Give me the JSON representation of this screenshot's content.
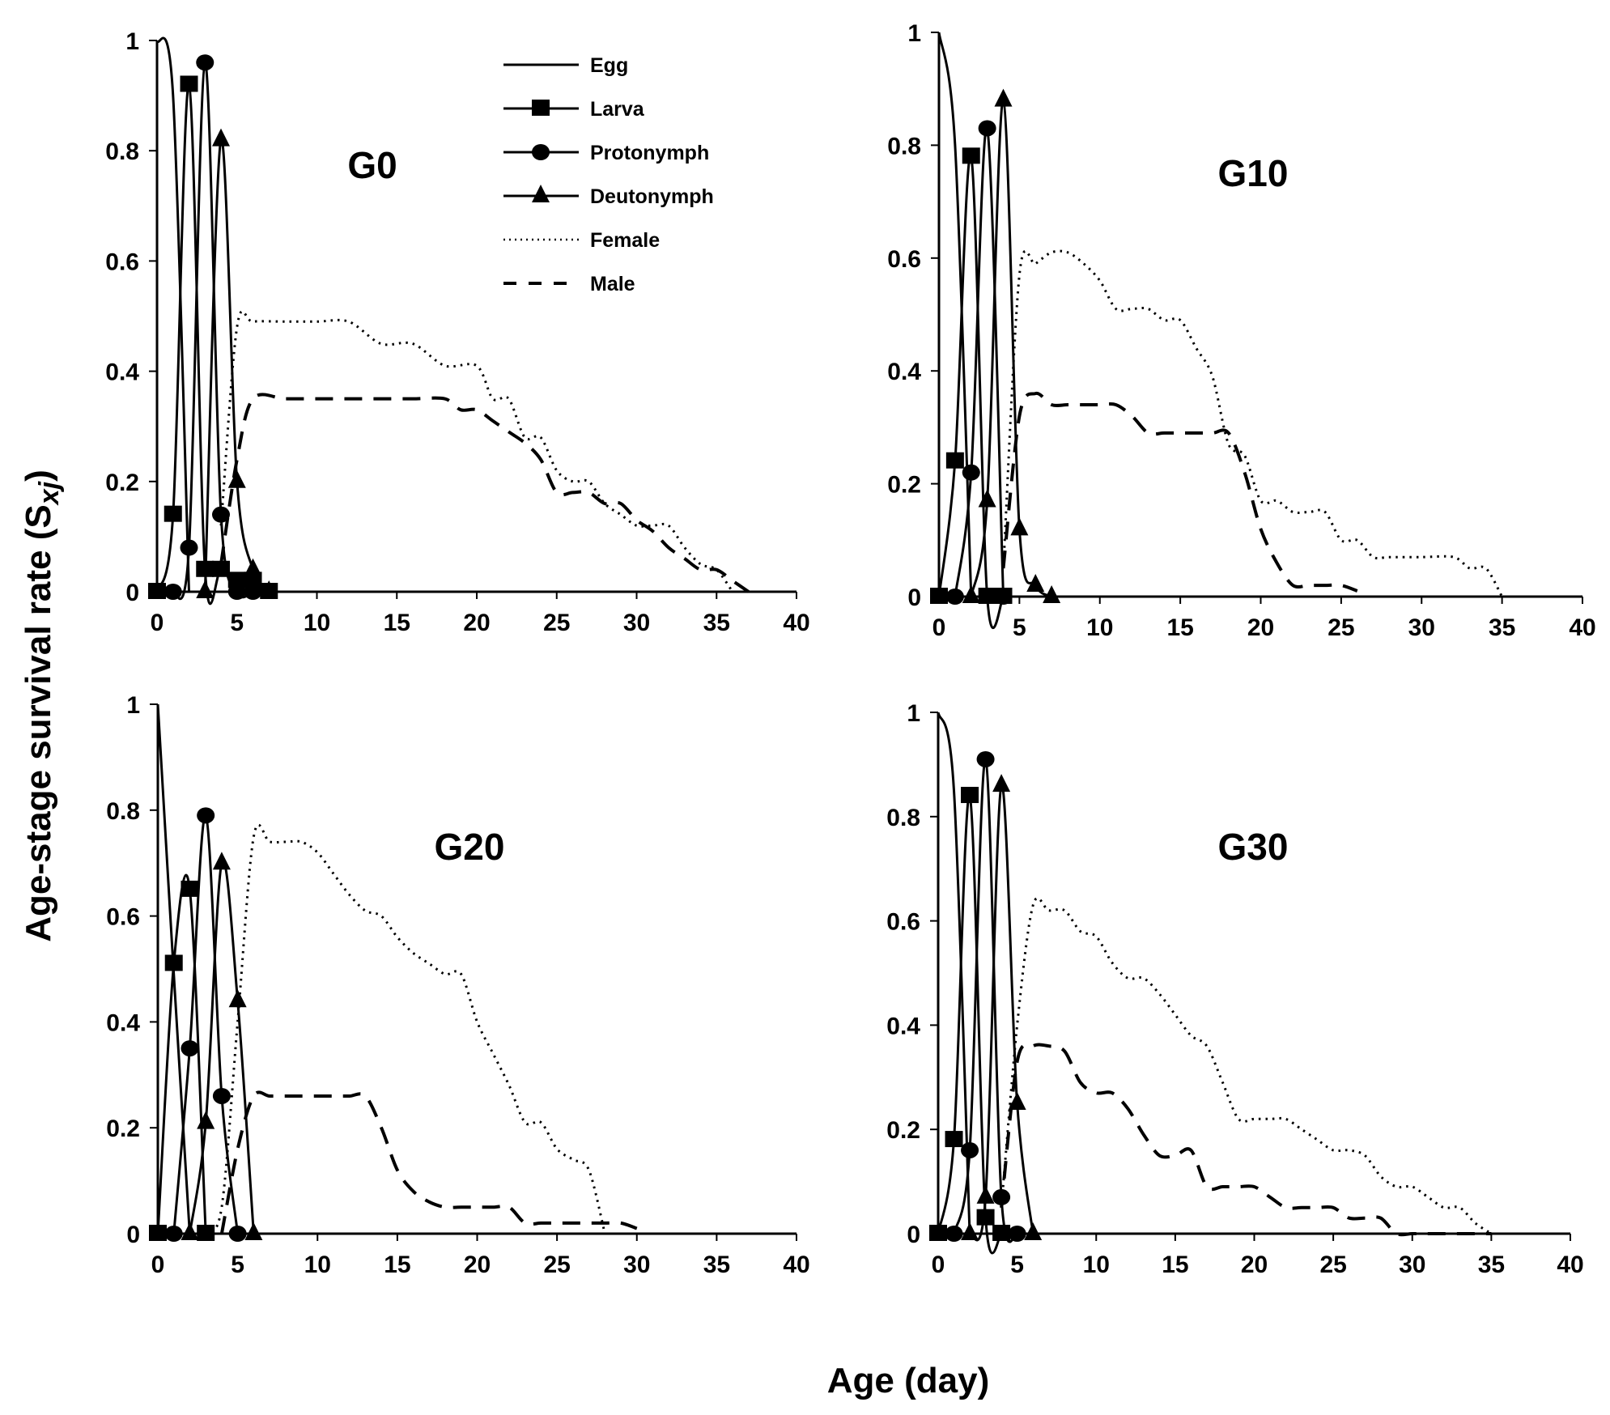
{
  "chart_data": {
    "type": "line",
    "ylabel": "Age-stage survival rate (S",
    "ylabel_subscript": "xj",
    "ylabel_close": ")",
    "xlabel": "Age (day)",
    "legend": [
      {
        "name": "Egg",
        "style": "solid",
        "marker": "none"
      },
      {
        "name": "Larva",
        "style": "solid",
        "marker": "square"
      },
      {
        "name": "Protonymph",
        "style": "solid",
        "marker": "circle"
      },
      {
        "name": "Deutonymph",
        "style": "solid",
        "marker": "triangle"
      },
      {
        "name": "Female",
        "style": "dotted",
        "marker": "none"
      },
      {
        "name": "Male",
        "style": "dashed",
        "marker": "none"
      }
    ],
    "legend_placement": "top-right of first panel",
    "panels": [
      {
        "title": "G0",
        "xlim": [
          0,
          40
        ],
        "ylim": [
          0,
          1
        ],
        "xticks": [
          "0",
          "5",
          "10",
          "15",
          "20",
          "25",
          "30",
          "35",
          "40"
        ],
        "yticks": [
          "0",
          "0.2",
          "0.4",
          "0.6",
          "0.8",
          "1"
        ],
        "series": [
          {
            "name": "Egg",
            "x": [
              0,
              1,
              2
            ],
            "y": [
              1,
              0.9,
              0
            ]
          },
          {
            "name": "Larva",
            "x": [
              0,
              1,
              2,
              3,
              4,
              5,
              6,
              7
            ],
            "y": [
              0,
              0.14,
              0.92,
              0.04,
              0.04,
              0.02,
              0.02,
              0
            ]
          },
          {
            "name": "Protonymph",
            "x": [
              1,
              2,
              3,
              4,
              5,
              6
            ],
            "y": [
              0,
              0.08,
              0.96,
              0.14,
              0,
              0
            ]
          },
          {
            "name": "Deutonymph",
            "x": [
              3,
              4,
              5,
              6,
              7
            ],
            "y": [
              0,
              0.82,
              0.2,
              0.04,
              0
            ]
          },
          {
            "name": "Female",
            "x": [
              4,
              5,
              6,
              8,
              10,
              12,
              14,
              16,
              18,
              20,
              21,
              22,
              23,
              24,
              25,
              26,
              27,
              28,
              29,
              30,
              31,
              32,
              33,
              34,
              35,
              36
            ],
            "y": [
              0.12,
              0.48,
              0.49,
              0.49,
              0.49,
              0.49,
              0.45,
              0.45,
              0.41,
              0.41,
              0.35,
              0.35,
              0.28,
              0.28,
              0.22,
              0.2,
              0.2,
              0.16,
              0.14,
              0.12,
              0.12,
              0.12,
              0.08,
              0.05,
              0.04,
              0
            ]
          },
          {
            "name": "Male",
            "x": [
              4,
              5,
              6,
              8,
              10,
              12,
              14,
              16,
              18,
              19,
              20,
              21,
              22,
              23,
              24,
              25,
              26,
              27,
              28,
              29,
              30,
              31,
              32,
              33,
              34,
              35,
              36,
              37
            ],
            "y": [
              0.05,
              0.24,
              0.35,
              0.35,
              0.35,
              0.35,
              0.35,
              0.35,
              0.35,
              0.33,
              0.33,
              0.31,
              0.29,
              0.27,
              0.24,
              0.18,
              0.18,
              0.18,
              0.16,
              0.16,
              0.13,
              0.11,
              0.08,
              0.06,
              0.04,
              0.04,
              0.02,
              0
            ]
          }
        ]
      },
      {
        "title": "G10",
        "xlim": [
          0,
          40
        ],
        "ylim": [
          0,
          1
        ],
        "xticks": [
          "0",
          "5",
          "10",
          "15",
          "20",
          "25",
          "30",
          "35",
          "40"
        ],
        "yticks": [
          "0",
          "0.2",
          "0.4",
          "0.6",
          "0.8",
          "1"
        ],
        "series": [
          {
            "name": "Egg",
            "x": [
              0,
              1,
              2
            ],
            "y": [
              1,
              0.8,
              0
            ]
          },
          {
            "name": "Larva",
            "x": [
              0,
              1,
              2,
              3,
              4
            ],
            "y": [
              0,
              0.24,
              0.78,
              0,
              0
            ]
          },
          {
            "name": "Protonymph",
            "x": [
              1,
              2,
              3,
              4
            ],
            "y": [
              0,
              0.22,
              0.83,
              0
            ]
          },
          {
            "name": "Deutonymph",
            "x": [
              2,
              3,
              4,
              5,
              6,
              7
            ],
            "y": [
              0,
              0.17,
              0.88,
              0.12,
              0.02,
              0
            ]
          },
          {
            "name": "Female",
            "x": [
              4,
              5,
              6,
              7,
              8,
              9,
              10,
              11,
              12,
              13,
              14,
              15,
              16,
              17,
              18,
              19,
              20,
              21,
              22,
              23,
              24,
              25,
              26,
              27,
              28,
              30,
              32,
              33,
              34,
              35
            ],
            "y": [
              0.05,
              0.57,
              0.59,
              0.61,
              0.61,
              0.59,
              0.56,
              0.51,
              0.51,
              0.51,
              0.49,
              0.49,
              0.44,
              0.39,
              0.27,
              0.25,
              0.17,
              0.17,
              0.15,
              0.15,
              0.15,
              0.1,
              0.1,
              0.07,
              0.07,
              0.07,
              0.07,
              0.05,
              0.05,
              0
            ]
          },
          {
            "name": "Male",
            "x": [
              4,
              5,
              6,
              7,
              8,
              9,
              10,
              11,
              12,
              13,
              14,
              15,
              16,
              17,
              18,
              19,
              20,
              21,
              22,
              23,
              24,
              25,
              26
            ],
            "y": [
              0.05,
              0.32,
              0.36,
              0.34,
              0.34,
              0.34,
              0.34,
              0.34,
              0.32,
              0.29,
              0.29,
              0.29,
              0.29,
              0.29,
              0.29,
              0.22,
              0.12,
              0.06,
              0.02,
              0.02,
              0.02,
              0.02,
              0.01
            ]
          }
        ]
      },
      {
        "title": "G20",
        "xlim": [
          0,
          40
        ],
        "ylim": [
          0,
          1
        ],
        "xticks": [
          "0",
          "5",
          "10",
          "15",
          "20",
          "25",
          "30",
          "35",
          "40"
        ],
        "yticks": [
          "0",
          "0.2",
          "0.4",
          "0.6",
          "0.8",
          "1"
        ],
        "series": [
          {
            "name": "Egg",
            "x": [
              0,
              1,
              2
            ],
            "y": [
              1,
              0.49,
              0
            ]
          },
          {
            "name": "Larva",
            "x": [
              0,
              1,
              2,
              3
            ],
            "y": [
              0,
              0.51,
              0.65,
              0
            ]
          },
          {
            "name": "Protonymph",
            "x": [
              1,
              2,
              3,
              4,
              5
            ],
            "y": [
              0,
              0.35,
              0.79,
              0.26,
              0
            ]
          },
          {
            "name": "Deutonymph",
            "x": [
              2,
              3,
              4,
              5,
              6
            ],
            "y": [
              0,
              0.21,
              0.7,
              0.44,
              0
            ]
          },
          {
            "name": "Female",
            "x": [
              3,
              4,
              5,
              6,
              7,
              8,
              9,
              10,
              11,
              12,
              13,
              14,
              15,
              16,
              17,
              18,
              19,
              20,
              21,
              22,
              23,
              24,
              25,
              26,
              27,
              28
            ],
            "y": [
              0,
              0.05,
              0.4,
              0.75,
              0.74,
              0.74,
              0.74,
              0.72,
              0.68,
              0.64,
              0.61,
              0.6,
              0.56,
              0.53,
              0.51,
              0.49,
              0.49,
              0.4,
              0.34,
              0.28,
              0.21,
              0.21,
              0.16,
              0.14,
              0.12,
              0
            ]
          },
          {
            "name": "Male",
            "x": [
              4,
              5,
              6,
              7,
              8,
              9,
              10,
              11,
              12,
              13,
              14,
              15,
              16,
              17,
              18,
              19,
              20,
              21,
              22,
              23,
              24,
              25,
              26,
              27,
              28,
              29,
              30
            ],
            "y": [
              0,
              0.16,
              0.26,
              0.26,
              0.26,
              0.26,
              0.26,
              0.26,
              0.26,
              0.26,
              0.2,
              0.12,
              0.08,
              0.06,
              0.05,
              0.05,
              0.05,
              0.05,
              0.05,
              0.02,
              0.02,
              0.02,
              0.02,
              0.02,
              0.02,
              0.02,
              0.01
            ]
          }
        ]
      },
      {
        "title": "G30",
        "xlim": [
          0,
          40
        ],
        "ylim": [
          0,
          1
        ],
        "xticks": [
          "0",
          "5",
          "10",
          "15",
          "20",
          "25",
          "30",
          "35",
          "40"
        ],
        "yticks": [
          "0",
          "0.2",
          "0.4",
          "0.6",
          "0.8",
          "1"
        ],
        "series": [
          {
            "name": "Egg",
            "x": [
              0,
              1,
              2
            ],
            "y": [
              1,
              0.85,
              0
            ]
          },
          {
            "name": "Larva",
            "x": [
              0,
              1,
              2,
              3,
              4
            ],
            "y": [
              0,
              0.18,
              0.84,
              0.03,
              0
            ]
          },
          {
            "name": "Protonymph",
            "x": [
              1,
              2,
              3,
              4,
              5
            ],
            "y": [
              0,
              0.16,
              0.91,
              0.07,
              0
            ]
          },
          {
            "name": "Deutonymph",
            "x": [
              2,
              3,
              4,
              5,
              6
            ],
            "y": [
              0,
              0.07,
              0.86,
              0.25,
              0
            ]
          },
          {
            "name": "Female",
            "x": [
              4,
              5,
              6,
              7,
              8,
              9,
              10,
              11,
              12,
              13,
              14,
              15,
              16,
              17,
              18,
              19,
              20,
              21,
              22,
              23,
              24,
              25,
              26,
              27,
              28,
              29,
              30,
              31,
              32,
              33,
              34,
              35
            ],
            "y": [
              0.05,
              0.4,
              0.63,
              0.62,
              0.62,
              0.58,
              0.57,
              0.52,
              0.49,
              0.49,
              0.46,
              0.42,
              0.38,
              0.36,
              0.29,
              0.22,
              0.22,
              0.22,
              0.22,
              0.2,
              0.18,
              0.16,
              0.16,
              0.15,
              0.11,
              0.09,
              0.09,
              0.07,
              0.05,
              0.05,
              0.02,
              0
            ]
          },
          {
            "name": "Male",
            "x": [
              4,
              5,
              6,
              7,
              8,
              9,
              10,
              11,
              12,
              13,
              14,
              15,
              16,
              17,
              18,
              19,
              20,
              21,
              22,
              23,
              24,
              25,
              26,
              27,
              28,
              29,
              30,
              31,
              32,
              33,
              34,
              35
            ],
            "y": [
              0.05,
              0.33,
              0.36,
              0.36,
              0.35,
              0.29,
              0.27,
              0.27,
              0.24,
              0.19,
              0.15,
              0.15,
              0.16,
              0.09,
              0.09,
              0.09,
              0.09,
              0.07,
              0.05,
              0.05,
              0.05,
              0.05,
              0.03,
              0.03,
              0.03,
              0,
              0,
              0,
              0,
              0,
              0,
              0
            ]
          }
        ]
      }
    ]
  }
}
